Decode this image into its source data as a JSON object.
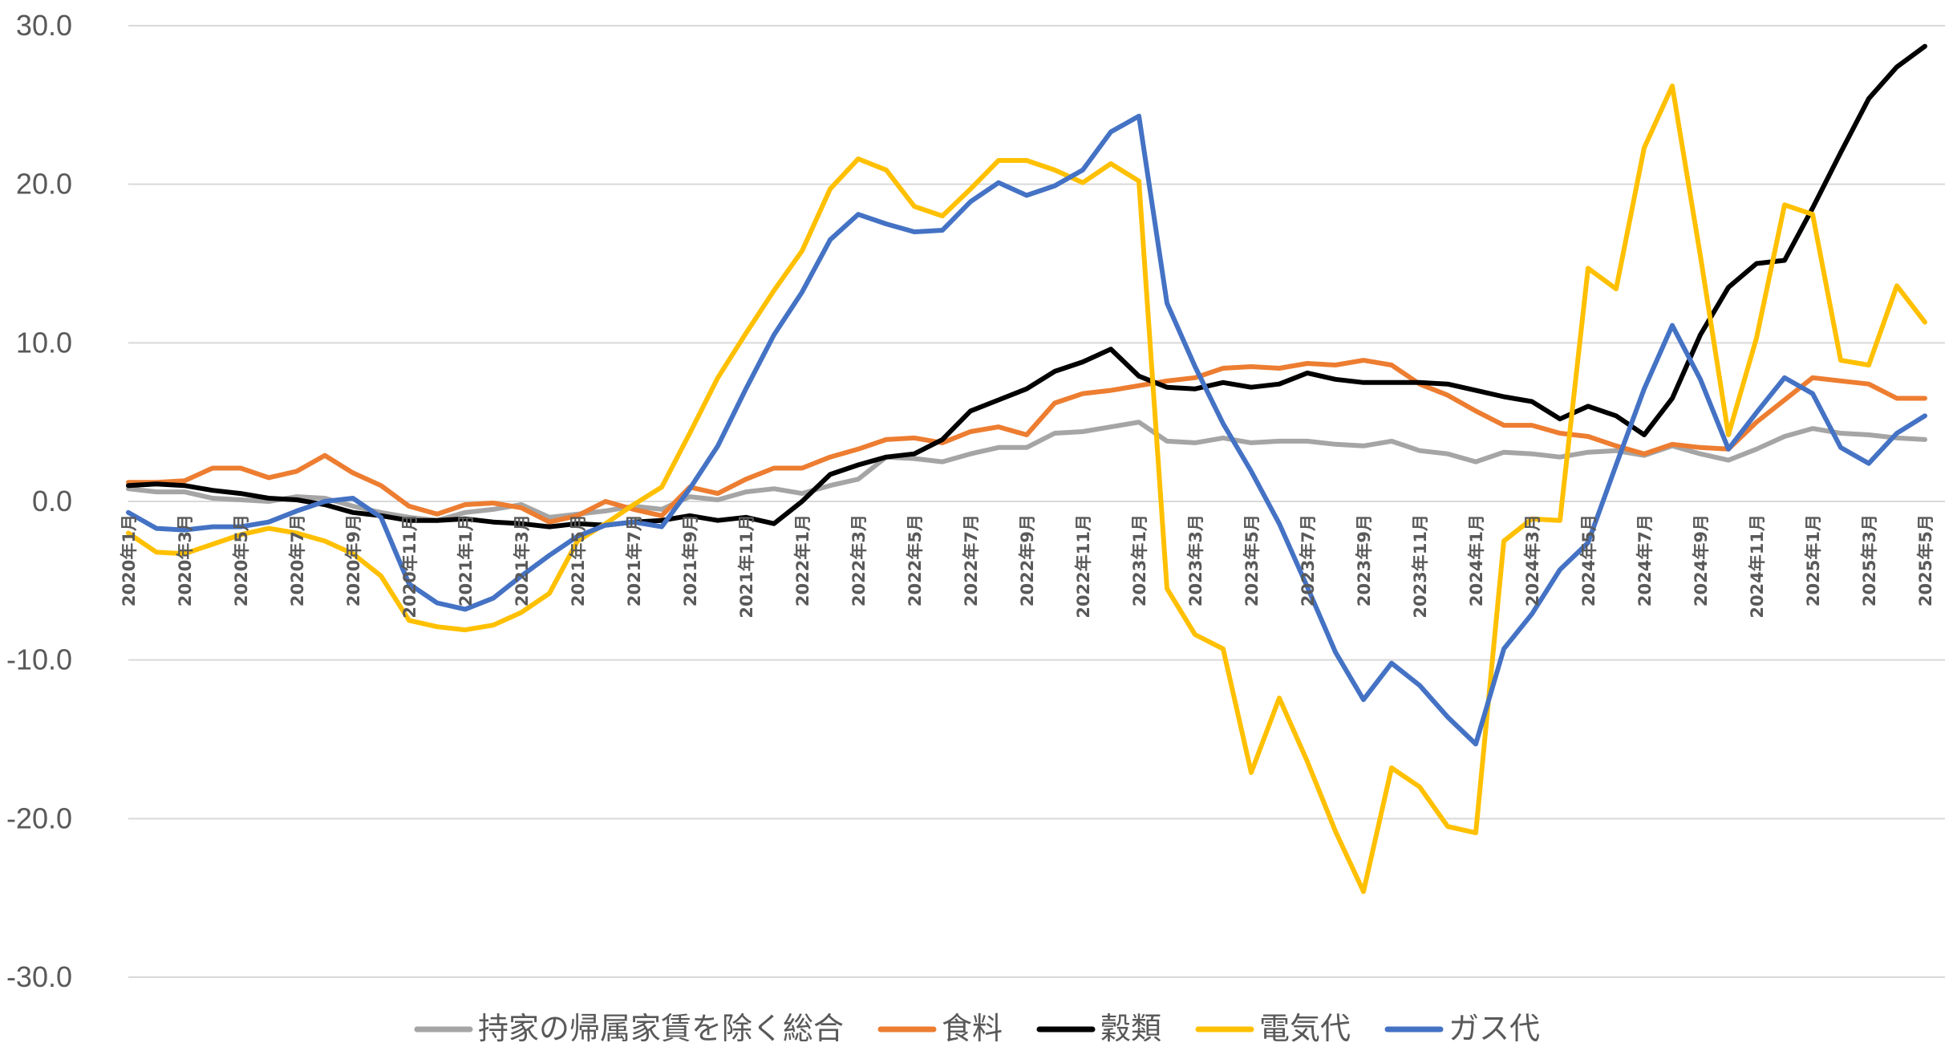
{
  "chart_data": {
    "type": "line",
    "title": "",
    "xlabel": "",
    "ylabel": "",
    "ylim": [
      -30,
      30
    ],
    "yticks": [
      30,
      20,
      10,
      0,
      -10,
      -20,
      -30
    ],
    "ytick_labels": [
      "30.0",
      "20.0",
      "10.0",
      "0.0",
      "-10.0",
      "-20.0",
      "-30.0"
    ],
    "grid": true,
    "legend_position": "bottom",
    "x": [
      "2020年1月",
      "2020年2月",
      "2020年3月",
      "2020年4月",
      "2020年5月",
      "2020年6月",
      "2020年7月",
      "2020年8月",
      "2020年9月",
      "2020年10月",
      "2020年11月",
      "2020年12月",
      "2021年1月",
      "2021年2月",
      "2021年3月",
      "2021年4月",
      "2021年5月",
      "2021年6月",
      "2021年7月",
      "2021年8月",
      "2021年9月",
      "2021年10月",
      "2021年11月",
      "2021年12月",
      "2022年1月",
      "2022年2月",
      "2022年3月",
      "2022年4月",
      "2022年5月",
      "2022年6月",
      "2022年7月",
      "2022年8月",
      "2022年9月",
      "2022年10月",
      "2022年11月",
      "2022年12月",
      "2023年1月",
      "2023年2月",
      "2023年3月",
      "2023年4月",
      "2023年5月",
      "2023年6月",
      "2023年7月",
      "2023年8月",
      "2023年9月",
      "2023年10月",
      "2023年11月",
      "2023年12月",
      "2024年1月",
      "2024年2月",
      "2024年3月",
      "2024年4月",
      "2024年5月",
      "2024年6月",
      "2024年7月",
      "2024年8月",
      "2024年9月",
      "2024年10月",
      "2024年11月",
      "2024年12月",
      "2025年1月",
      "2025年2月",
      "2025年3月",
      "2025年4月",
      "2025年5月"
    ],
    "x_tick_labels": [
      "2020年1月",
      "2020年3月",
      "2020年5月",
      "2020年7月",
      "2020年9月",
      "2020年11月",
      "2021年1月",
      "2021年3月",
      "2021年5月",
      "2021年7月",
      "2021年9月",
      "2021年11月",
      "2022年1月",
      "2022年3月",
      "2022年5月",
      "2022年7月",
      "2022年9月",
      "2022年11月",
      "2023年1月",
      "2023年3月",
      "2023年5月",
      "2023年7月",
      "2023年9月",
      "2023年11月",
      "2024年1月",
      "2024年3月",
      "2024年5月",
      "2024年7月",
      "2024年9月",
      "2024年11月",
      "2025年1月",
      "2025年3月",
      "2025年5月"
    ],
    "series": [
      {
        "name": "持家の帰属家賃を除く総合",
        "color": "#a5a5a5",
        "values": [
          0.8,
          0.6,
          0.6,
          0.2,
          0.1,
          0.0,
          0.3,
          0.2,
          -0.3,
          -0.7,
          -1.0,
          -1.2,
          -0.7,
          -0.5,
          -0.2,
          -1.0,
          -0.8,
          -0.6,
          -0.3,
          -0.5,
          0.3,
          0.1,
          0.6,
          0.8,
          0.5,
          1.0,
          1.4,
          2.8,
          2.7,
          2.5,
          3.0,
          3.4,
          3.4,
          4.3,
          4.4,
          4.7,
          5.0,
          3.8,
          3.7,
          4.0,
          3.7,
          3.8,
          3.8,
          3.6,
          3.5,
          3.8,
          3.2,
          3.0,
          2.5,
          3.1,
          3.0,
          2.8,
          3.1,
          3.2,
          2.9,
          3.5,
          3.0,
          2.6,
          3.3,
          4.1,
          4.6,
          4.3,
          4.2,
          4.0,
          3.9
        ]
      },
      {
        "name": "食料",
        "color": "#ed7d31",
        "values": [
          1.2,
          1.2,
          1.3,
          2.1,
          2.1,
          1.5,
          1.9,
          2.9,
          1.8,
          1.0,
          -0.3,
          -0.8,
          -0.2,
          -0.1,
          -0.4,
          -1.3,
          -0.9,
          0.0,
          -0.5,
          -0.9,
          0.9,
          0.5,
          1.4,
          2.1,
          2.1,
          2.8,
          3.3,
          3.9,
          4.0,
          3.7,
          4.4,
          4.7,
          4.2,
          6.2,
          6.8,
          7.0,
          7.3,
          7.6,
          7.8,
          8.4,
          8.5,
          8.4,
          8.7,
          8.6,
          8.9,
          8.6,
          7.4,
          6.7,
          5.7,
          4.8,
          4.8,
          4.3,
          4.1,
          3.5,
          3.0,
          3.6,
          3.4,
          3.3,
          5.0,
          6.4,
          7.8,
          7.6,
          7.4,
          6.5,
          6.5
        ]
      },
      {
        "name": "穀類",
        "color": "#000000",
        "values": [
          1.0,
          1.1,
          1.0,
          0.7,
          0.5,
          0.2,
          0.1,
          -0.2,
          -0.7,
          -0.9,
          -1.2,
          -1.2,
          -1.1,
          -1.3,
          -1.4,
          -1.6,
          -1.4,
          -1.5,
          -1.3,
          -1.2,
          -0.9,
          -1.2,
          -1.0,
          -1.4,
          0.0,
          1.7,
          2.3,
          2.8,
          3.0,
          3.9,
          5.7,
          6.4,
          7.1,
          8.2,
          8.8,
          9.6,
          7.9,
          7.2,
          7.1,
          7.5,
          7.2,
          7.4,
          8.1,
          7.7,
          7.5,
          7.5,
          7.5,
          7.4,
          7.0,
          6.6,
          6.3,
          5.2,
          6.0,
          5.4,
          4.2,
          6.5,
          10.5,
          13.5,
          15.0,
          15.2,
          18.5,
          22.0,
          25.4,
          27.4,
          28.7
        ]
      },
      {
        "name": "電気代",
        "color": "#ffc000",
        "values": [
          -2.0,
          -3.2,
          -3.3,
          -2.7,
          -2.1,
          -1.7,
          -2.0,
          -2.5,
          -3.3,
          -4.7,
          -7.5,
          -7.9,
          -8.1,
          -7.8,
          -7.0,
          -5.8,
          -2.5,
          -1.4,
          -0.2,
          0.9,
          4.3,
          7.8,
          10.6,
          13.3,
          15.8,
          19.7,
          21.6,
          20.9,
          18.6,
          18.0,
          19.7,
          21.5,
          21.5,
          20.9,
          20.1,
          21.3,
          20.2,
          -5.5,
          -8.4,
          -9.3,
          -17.1,
          -12.4,
          -16.4,
          -20.8,
          -24.6,
          -16.8,
          -18.0,
          -20.5,
          -20.9,
          -2.5,
          -1.1,
          -1.2,
          14.7,
          13.4,
          22.3,
          26.2,
          15.5,
          4.2,
          10.3,
          18.7,
          18.1,
          8.9,
          8.6,
          13.6,
          11.3
        ]
      },
      {
        "name": "ガス代",
        "color": "#4472c4",
        "values": [
          -0.7,
          -1.7,
          -1.8,
          -1.6,
          -1.6,
          -1.3,
          -0.6,
          0.0,
          0.2,
          -1.0,
          -5.2,
          -6.4,
          -6.8,
          -6.1,
          -4.7,
          -3.4,
          -2.2,
          -1.5,
          -1.3,
          -1.6,
          0.8,
          3.5,
          7.1,
          10.5,
          13.2,
          16.5,
          18.1,
          17.5,
          17.0,
          17.1,
          18.9,
          20.1,
          19.3,
          19.9,
          20.9,
          23.3,
          24.3,
          12.5,
          8.5,
          4.9,
          1.9,
          -1.4,
          -5.4,
          -9.5,
          -12.5,
          -10.2,
          -11.6,
          -13.6,
          -15.3,
          -9.3,
          -7.1,
          -4.3,
          -2.6,
          2.3,
          7.1,
          11.1,
          7.7,
          3.3,
          5.6,
          7.8,
          6.8,
          3.4,
          2.4,
          4.3,
          5.4
        ]
      }
    ]
  }
}
